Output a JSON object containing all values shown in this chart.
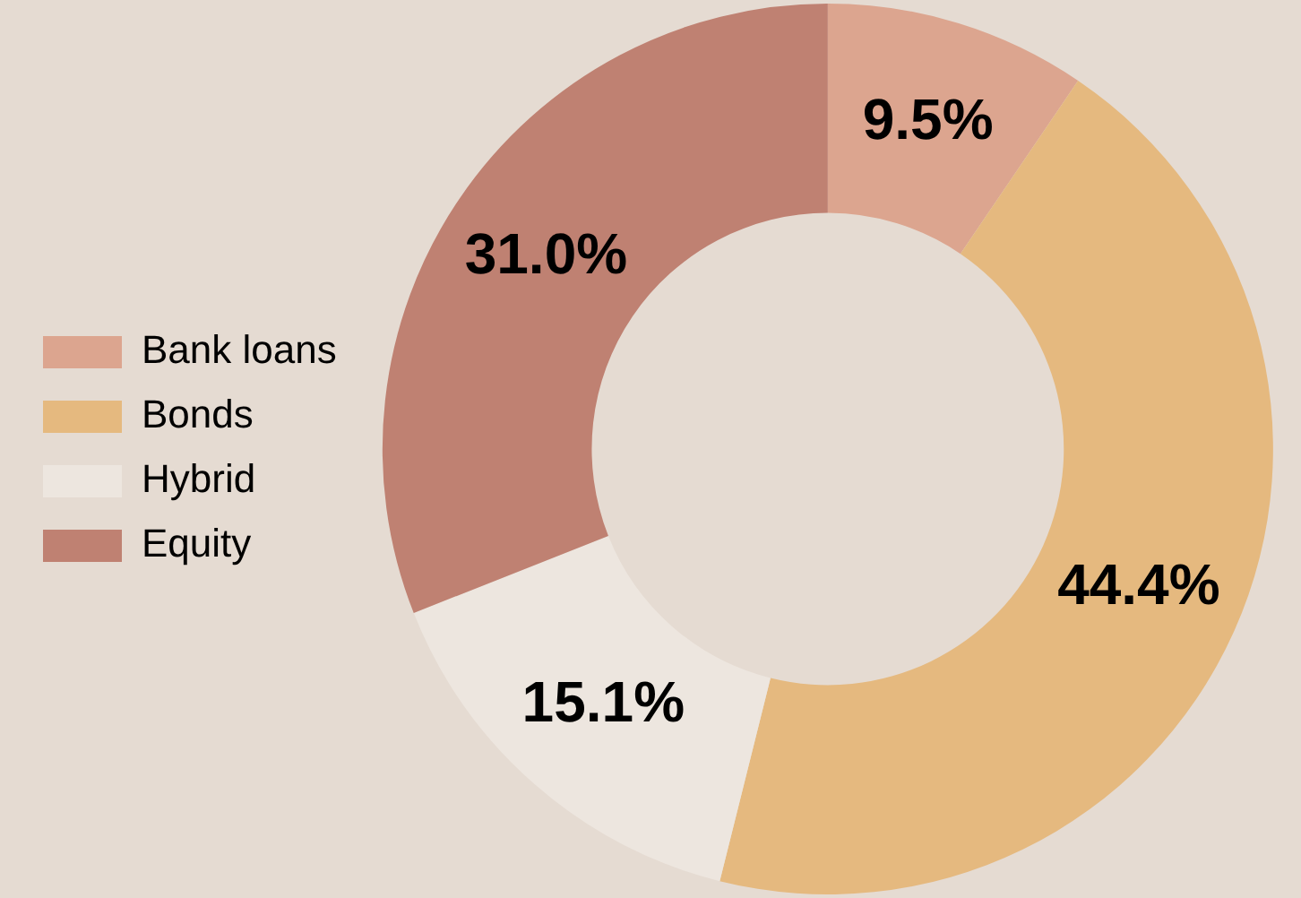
{
  "chart_data": {
    "type": "donut",
    "categories": [
      "Bank loans",
      "Bonds",
      "Hybrid",
      "Equity"
    ],
    "values": [
      9.5,
      44.4,
      15.1,
      31.0
    ],
    "colors": [
      "#dca58f",
      "#e5b97f",
      "#ede6df",
      "#bf8172"
    ],
    "value_labels": [
      "9.5%",
      "44.4%",
      "15.1%",
      "31.0%"
    ],
    "legend": "left"
  }
}
